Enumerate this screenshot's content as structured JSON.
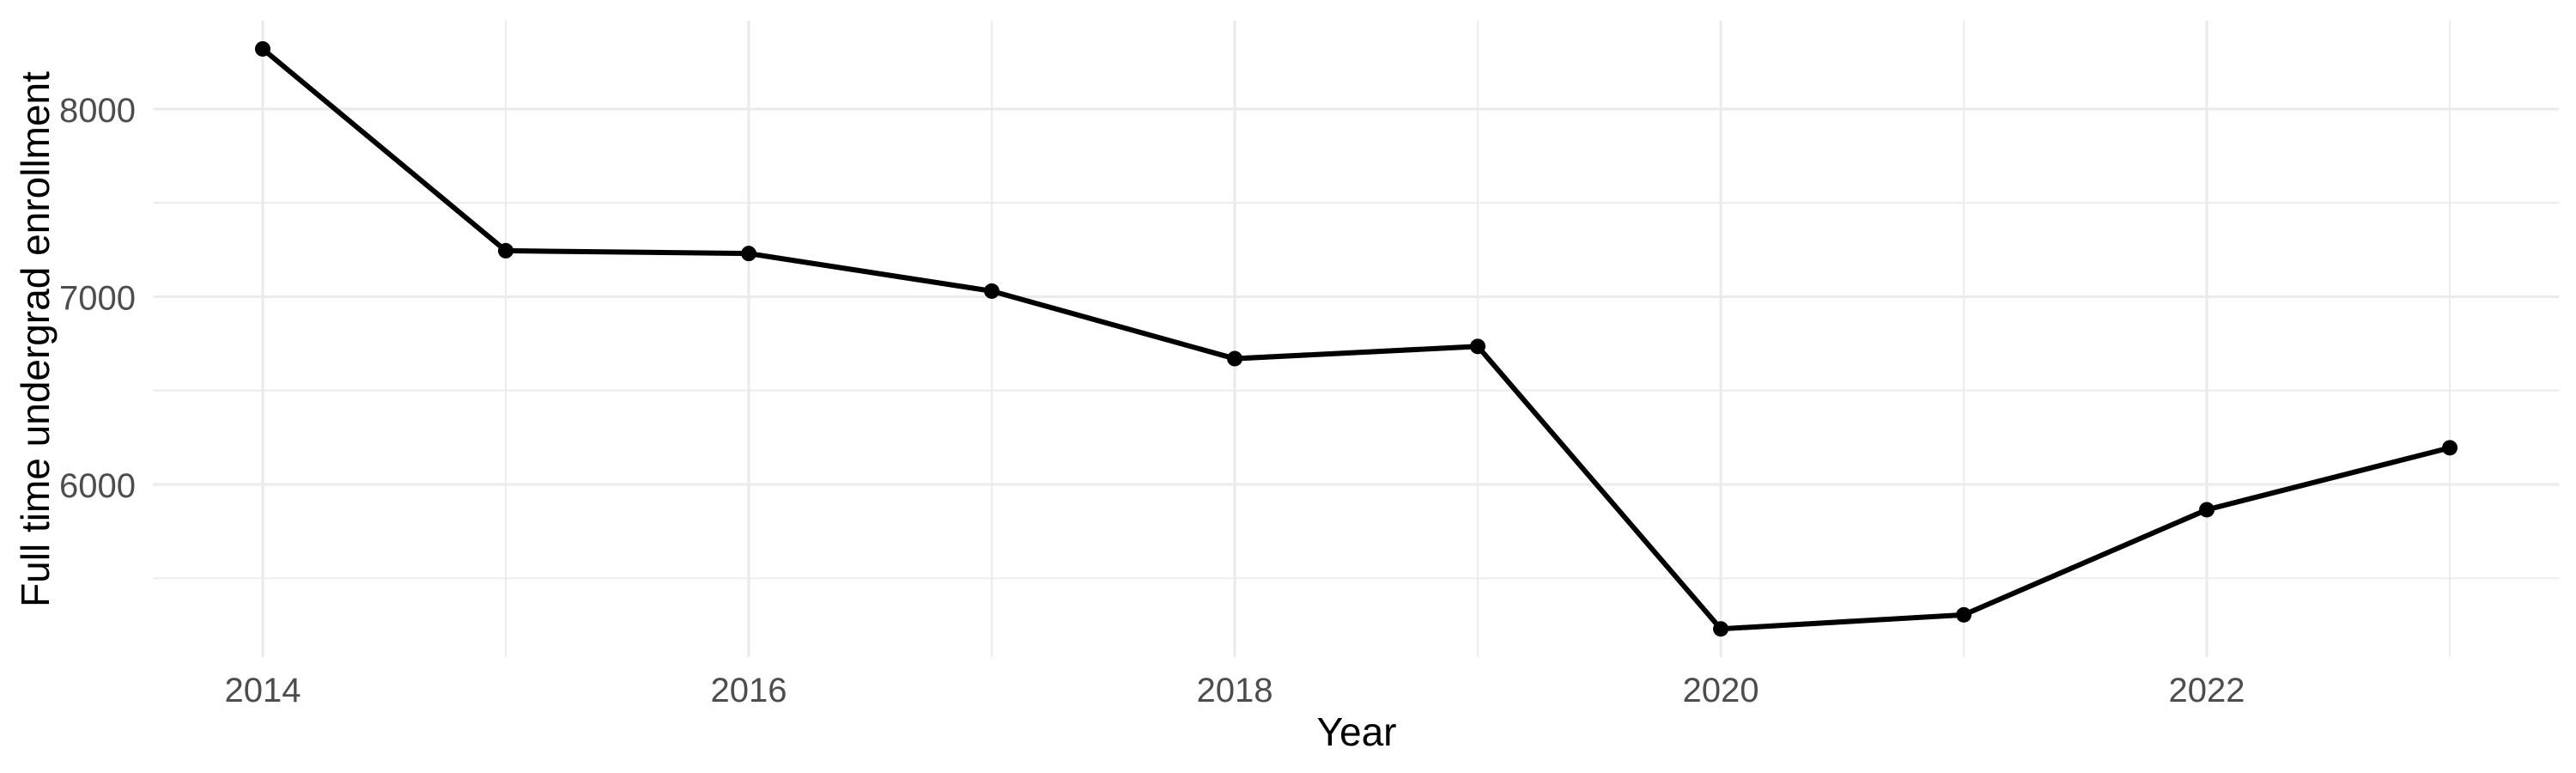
{
  "page": {
    "background": "#FFFFFF"
  },
  "chart_data": {
    "type": "line",
    "title": "",
    "xlabel": "Year",
    "ylabel": "Full time undergrad enrollment",
    "x": [
      2014,
      2015,
      2016,
      2017,
      2018,
      2019,
      2020,
      2021,
      2022,
      2023
    ],
    "series": [
      {
        "name": "Full time undergrad enrollment",
        "values": [
          8320,
          7245,
          7230,
          7030,
          6670,
          6735,
          5230,
          5305,
          5865,
          6195
        ]
      }
    ],
    "x_ticks": [
      2014,
      2016,
      2018,
      2020,
      2022
    ],
    "x_minor_ticks": [
      2015,
      2017,
      2019,
      2021,
      2023
    ],
    "y_ticks": [
      6000,
      7000,
      8000
    ],
    "y_minor_ticks": [
      5500,
      6500,
      7500
    ],
    "xlim": [
      2013.55,
      2023.45
    ],
    "ylim": [
      5080,
      8471
    ],
    "grid": "on",
    "legend": "none",
    "style": {
      "background": "#FFFFFF",
      "line_color": "#000000",
      "point_color": "#000000",
      "grid_major_color": "#EBEBEB",
      "grid_minor_color": "#EBEBEB",
      "tick_label_color": "#4D4D4D",
      "axis_title_color": "#000000"
    }
  }
}
